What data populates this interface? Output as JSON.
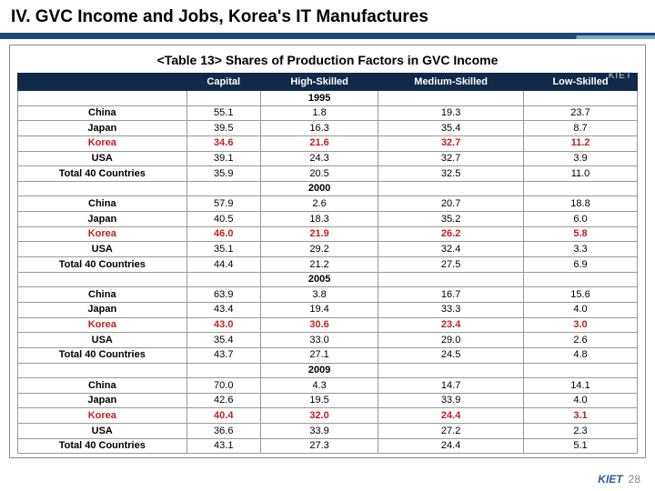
{
  "title": "IV. GVC Income and Jobs, Korea's IT Manufactures",
  "subtitle": "<Table 13> Shares of Production Factors in GVC Income",
  "watermark": "KIET",
  "columns": [
    "",
    "Capital",
    "High-Skilled",
    "Medium-Skilled",
    "Low-Skilled"
  ],
  "sections": [
    {
      "year": "1995",
      "rows": [
        {
          "label": "China",
          "vals": [
            "55.1",
            "1.8",
            "19.3",
            "23.7"
          ]
        },
        {
          "label": "Japan",
          "vals": [
            "39.5",
            "16.3",
            "35.4",
            "8.7"
          ]
        },
        {
          "label": "Korea",
          "vals": [
            "34.6",
            "21.6",
            "32.7",
            "11.2"
          ],
          "korea": true
        },
        {
          "label": "USA",
          "vals": [
            "39.1",
            "24.3",
            "32.7",
            "3.9"
          ]
        },
        {
          "label": "Total 40 Countries",
          "vals": [
            "35.9",
            "20.5",
            "32.5",
            "11.0"
          ]
        }
      ]
    },
    {
      "year": "2000",
      "rows": [
        {
          "label": "China",
          "vals": [
            "57.9",
            "2.6",
            "20.7",
            "18.8"
          ]
        },
        {
          "label": "Japan",
          "vals": [
            "40.5",
            "18.3",
            "35.2",
            "6.0"
          ]
        },
        {
          "label": "Korea",
          "vals": [
            "46.0",
            "21.9",
            "26.2",
            "5.8"
          ],
          "korea": true
        },
        {
          "label": "USA",
          "vals": [
            "35.1",
            "29.2",
            "32.4",
            "3.3"
          ]
        },
        {
          "label": "Total 40 Countries",
          "vals": [
            "44.4",
            "21.2",
            "27.5",
            "6.9"
          ]
        }
      ]
    },
    {
      "year": "2005",
      "rows": [
        {
          "label": "China",
          "vals": [
            "63.9",
            "3.8",
            "16.7",
            "15.6"
          ]
        },
        {
          "label": "Japan",
          "vals": [
            "43.4",
            "19.4",
            "33.3",
            "4.0"
          ]
        },
        {
          "label": "Korea",
          "vals": [
            "43.0",
            "30.6",
            "23.4",
            "3.0"
          ],
          "korea": true
        },
        {
          "label": "USA",
          "vals": [
            "35.4",
            "33.0",
            "29.0",
            "2.6"
          ]
        },
        {
          "label": "Total 40 Countries",
          "vals": [
            "43.7",
            "27.1",
            "24.5",
            "4.8"
          ]
        }
      ]
    },
    {
      "year": "2009",
      "rows": [
        {
          "label": "China",
          "vals": [
            "70.0",
            "4.3",
            "14.7",
            "14.1"
          ]
        },
        {
          "label": "Japan",
          "vals": [
            "42.6",
            "19.5",
            "33.9",
            "4.0"
          ]
        },
        {
          "label": "Korea",
          "vals": [
            "40.4",
            "32.0",
            "24.4",
            "3.1"
          ],
          "korea": true
        },
        {
          "label": "USA",
          "vals": [
            "36.6",
            "33.9",
            "27.2",
            "2.3"
          ]
        },
        {
          "label": "Total 40 Countries",
          "vals": [
            "43.1",
            "27.3",
            "24.4",
            "5.1"
          ]
        }
      ]
    }
  ],
  "footer_logo": "KIET",
  "page_number": "28"
}
